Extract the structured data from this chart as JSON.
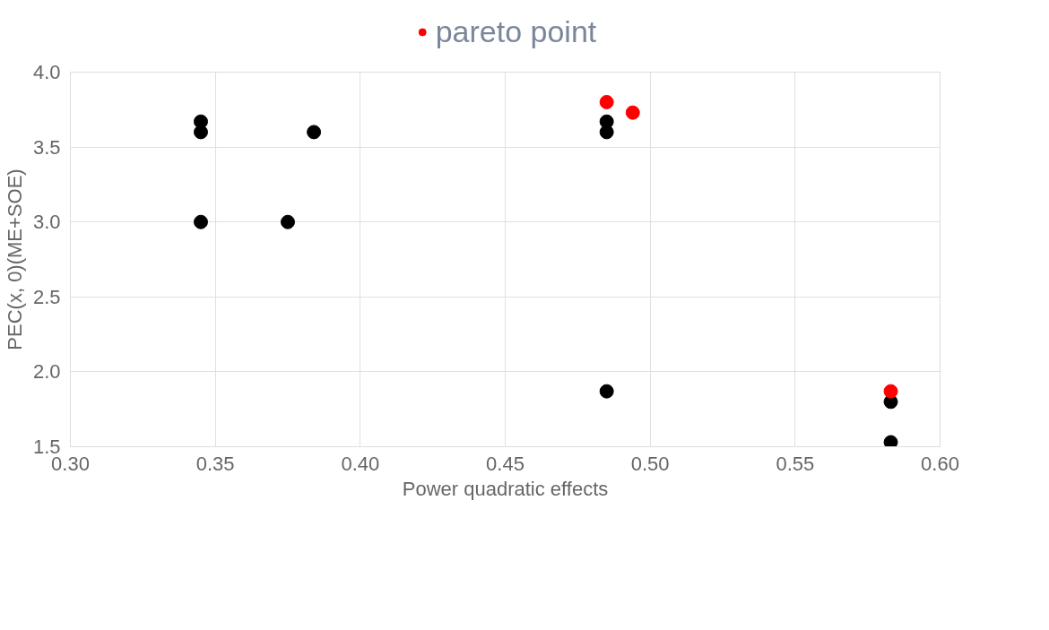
{
  "chart_data": {
    "type": "scatter",
    "xlabel": "Power quadratic effects",
    "ylabel": "PEC(x, 0)(ME+SOE)",
    "xlim": [
      0.3,
      0.6
    ],
    "xticks": [
      {
        "value": 0.3,
        "label": "0.30"
      },
      {
        "value": 0.35,
        "label": "0.35"
      },
      {
        "value": 0.4,
        "label": "0.40"
      },
      {
        "value": 0.45,
        "label": "0.45"
      },
      {
        "value": 0.5,
        "label": "0.50"
      },
      {
        "value": 0.55,
        "label": "0.55"
      },
      {
        "value": 0.6,
        "label": "0.60"
      }
    ],
    "ylim": [
      1.5,
      4.0
    ],
    "yticks": [
      {
        "value": 1.5,
        "label": "1.5"
      },
      {
        "value": 2.0,
        "label": "2.0"
      },
      {
        "value": 2.5,
        "label": "2.5"
      },
      {
        "value": 3.0,
        "label": "3.0"
      },
      {
        "value": 3.5,
        "label": "3.5"
      },
      {
        "value": 4.0,
        "label": "4.0"
      }
    ],
    "grid": true,
    "legend": "top",
    "marker": "circle",
    "series": [
      {
        "color": "#000000",
        "x": [
          0.345,
          0.345,
          0.345,
          0.375,
          0.384,
          0.485,
          0.485,
          0.485,
          0.583,
          0.583
        ],
        "values": [
          3.67,
          3.6,
          3.0,
          3.0,
          3.6,
          3.67,
          3.6,
          1.87,
          1.8,
          1.53
        ]
      },
      {
        "name": "pareto point",
        "color": "#ff0000",
        "x": [
          0.485,
          0.494,
          0.583
        ],
        "values": [
          3.8,
          3.73,
          1.87
        ]
      }
    ]
  }
}
